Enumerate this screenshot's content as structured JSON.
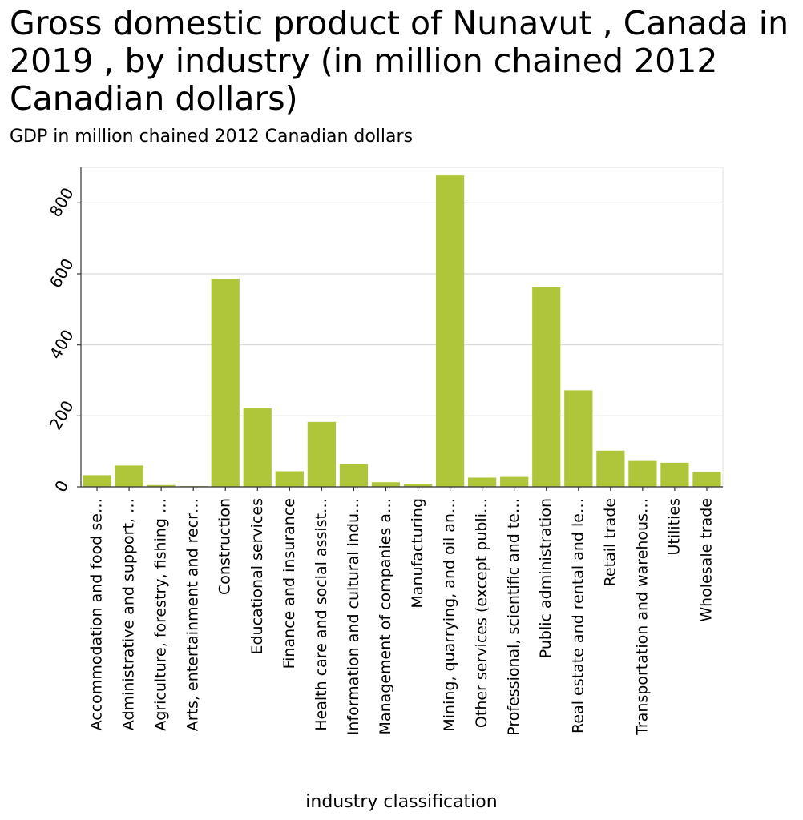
{
  "title": "Gross domestic product of Nunavut , Canada in 2019 , by industry (in million chained 2012 Canadian dollars)",
  "subtitle": "GDP in million chained 2012 Canadian dollars",
  "chart_data": {
    "type": "bar",
    "title": "Gross domestic product of Nunavut , Canada in 2019 , by industry (in million chained 2012 Canadian dollars)",
    "xlabel": "industry classification",
    "ylabel": "GDP in million chained 2012 Canadian dollars",
    "ylim": [
      0,
      900
    ],
    "yticks": [
      0,
      200,
      400,
      600,
      800
    ],
    "grid": true,
    "bar_color": "#b0c63a",
    "categories": [
      "Accommodation and food se…",
      "Administrative and support, …",
      "Agriculture, forestry, fishing …",
      "Arts, entertainment and recr…",
      "Construction",
      "Educational services",
      "Finance and insurance",
      "Health care and social assist…",
      "Information and cultural indu…",
      "Management of companies a…",
      "Manufacturing",
      "Mining, quarrying, and oil an…",
      "Other services (except publi…",
      "Professional, scientific and te…",
      "Public administration",
      "Real estate and rental and le…",
      "Retail trade",
      "Transportation and warehous…",
      "Utilities",
      "Wholesale trade"
    ],
    "values": [
      33,
      60,
      5,
      2,
      586,
      221,
      44,
      183,
      64,
      13,
      8,
      877,
      26,
      28,
      562,
      272,
      102,
      73,
      68,
      43
    ]
  }
}
